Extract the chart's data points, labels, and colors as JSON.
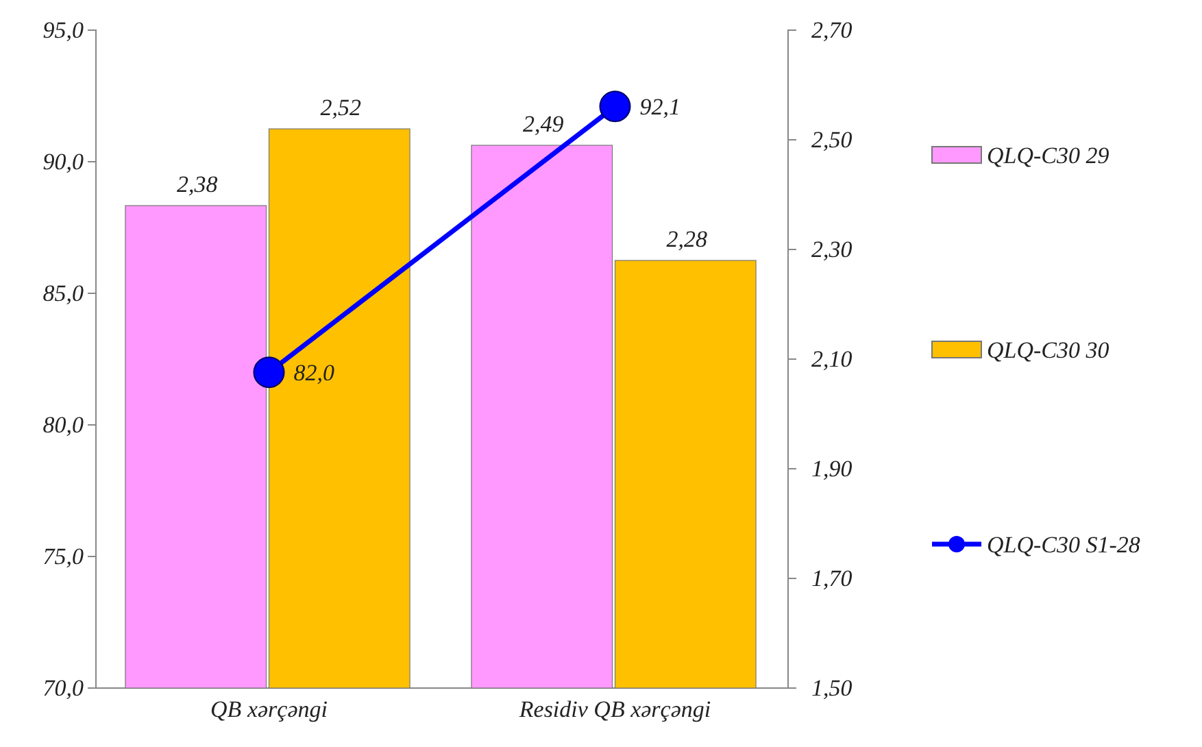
{
  "chart_data": {
    "type": "bar",
    "categories": [
      "QB xərçəngi",
      "Residiv QB xərçəngi"
    ],
    "ylim": [
      70,
      95
    ],
    "yticks": [
      {
        "value": 70,
        "label": "70,0"
      },
      {
        "value": 75,
        "label": "75,0"
      },
      {
        "value": 80,
        "label": "80,0"
      },
      {
        "value": 85,
        "label": "85,0"
      },
      {
        "value": 90,
        "label": "90,0"
      },
      {
        "value": 95,
        "label": "95,0"
      }
    ],
    "y2lim": [
      1.5,
      2.7
    ],
    "y2ticks": [
      {
        "value": 1.5,
        "label": "1,50"
      },
      {
        "value": 1.7,
        "label": "1,70"
      },
      {
        "value": 1.9,
        "label": "1,90"
      },
      {
        "value": 2.1,
        "label": "2,10"
      },
      {
        "value": 2.3,
        "label": "2,30"
      },
      {
        "value": 2.5,
        "label": "2,50"
      },
      {
        "value": 2.7,
        "label": "2,70"
      }
    ],
    "legend": "right",
    "marker": "circle",
    "series": [
      {
        "name": "QLQ-C30 29",
        "axis": "y2",
        "color": "#ff99ff",
        "values": [
          2.38,
          2.49
        ],
        "value_labels": [
          "2,38",
          "2,49"
        ]
      },
      {
        "name": "QLQ-C30 30",
        "axis": "y2",
        "color": "#ffc000",
        "values": [
          2.52,
          2.28
        ],
        "value_labels": [
          "2,52",
          "2,28"
        ]
      },
      {
        "name": "QLQ-C30 S1-28",
        "type": "line",
        "axis": "y",
        "color": "#0000ff",
        "values": [
          82.0,
          92.1
        ],
        "value_labels": [
          "82,0",
          "92,1"
        ]
      }
    ]
  }
}
